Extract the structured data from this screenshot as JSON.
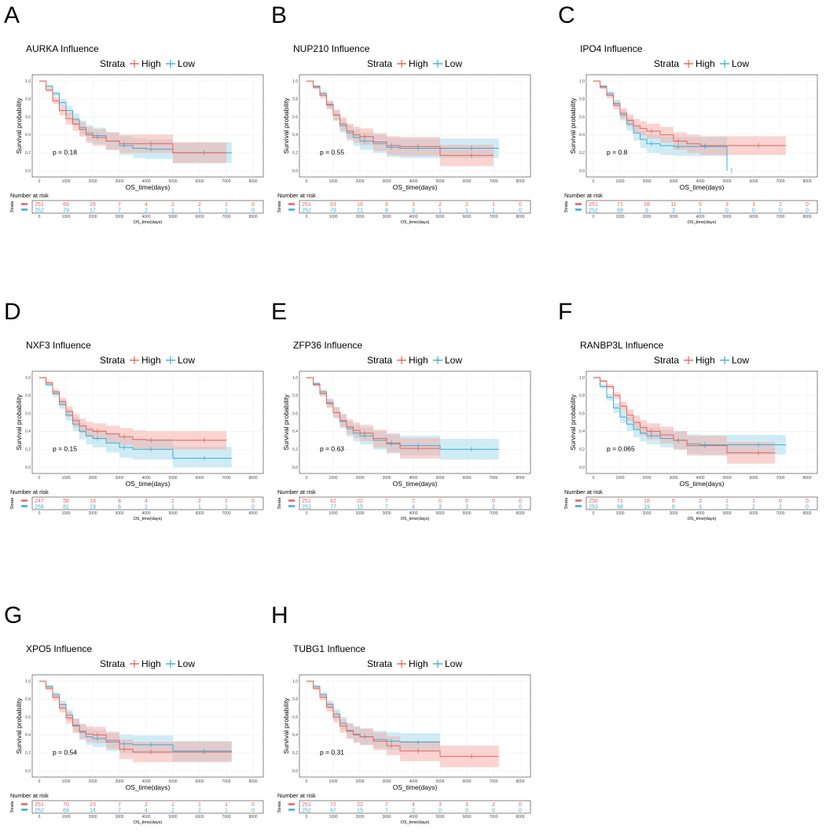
{
  "colors": {
    "high": "#e8615a",
    "low": "#38aed2",
    "high_band": "#f5a9a4",
    "low_band": "#a7dcec",
    "grid": "#ebebeb"
  },
  "panels_common": {
    "legend_title": "Strata",
    "legend_high": "High",
    "legend_low": "Low",
    "ylabel": "Survival probability",
    "xlabel": "OS_time(days)",
    "risk_title": "Number at risk",
    "risk_strata_label": "Strata",
    "x_ticks": [
      "0",
      "1000",
      "2000",
      "3000",
      "4000",
      "5000",
      "6000",
      "7000",
      "8000"
    ],
    "y_ticks": [
      "0.0",
      "0.2",
      "0.4",
      "0.6",
      "0.8",
      "1.0"
    ]
  },
  "chart_data": [
    {
      "letter": "A",
      "type": "line",
      "title": "AURKA Influence",
      "pvalue": "p = 0.18",
      "xlabel": "OS_time(days)",
      "ylabel": "Survival probability",
      "xlim": [
        0,
        8000
      ],
      "ylim": [
        0,
        1
      ],
      "series": [
        {
          "name": "High",
          "x": [
            0,
            250,
            500,
            750,
            1000,
            1250,
            1500,
            1750,
            2000,
            2500,
            3000,
            3500,
            4000,
            5000,
            6000,
            7000
          ],
          "y": [
            1.0,
            0.9,
            0.78,
            0.67,
            0.58,
            0.52,
            0.46,
            0.4,
            0.37,
            0.33,
            0.3,
            0.3,
            0.3,
            0.2,
            0.2,
            0.2
          ]
        },
        {
          "name": "Low",
          "x": [
            0,
            250,
            500,
            750,
            1000,
            1250,
            1500,
            1750,
            2000,
            2500,
            3000,
            3500,
            4000,
            5000,
            6000,
            7200
          ],
          "y": [
            1.0,
            0.94,
            0.86,
            0.76,
            0.67,
            0.57,
            0.48,
            0.42,
            0.39,
            0.33,
            0.28,
            0.25,
            0.24,
            0.2,
            0.2,
            0.2
          ]
        }
      ],
      "risk": {
        "High": [
          "251",
          "69",
          "20",
          "7",
          "4",
          "2",
          "2",
          "1",
          "0"
        ],
        "Low": [
          "252",
          "79",
          "17",
          "7",
          "2",
          "1",
          "1",
          "1",
          "0"
        ]
      }
    },
    {
      "letter": "B",
      "type": "line",
      "title": "NUP210 Influence",
      "pvalue": "p = 0.55",
      "xlabel": "OS_time(days)",
      "ylabel": "Survival probability",
      "xlim": [
        0,
        8000
      ],
      "ylim": [
        0,
        1
      ],
      "series": [
        {
          "name": "High",
          "x": [
            0,
            250,
            500,
            750,
            1000,
            1250,
            1500,
            1750,
            2000,
            2500,
            3000,
            3500,
            4000,
            5000,
            6000,
            7000
          ],
          "y": [
            1.0,
            0.93,
            0.84,
            0.73,
            0.62,
            0.52,
            0.44,
            0.4,
            0.38,
            0.32,
            0.28,
            0.27,
            0.27,
            0.17,
            0.17,
            0.17
          ]
        },
        {
          "name": "Low",
          "x": [
            0,
            250,
            500,
            750,
            1000,
            1250,
            1500,
            1750,
            2000,
            2500,
            3000,
            3500,
            4000,
            5000,
            6000,
            7200
          ],
          "y": [
            1.0,
            0.94,
            0.86,
            0.74,
            0.62,
            0.5,
            0.42,
            0.37,
            0.33,
            0.3,
            0.26,
            0.25,
            0.25,
            0.25,
            0.25,
            0.25
          ]
        }
      ],
      "risk": {
        "High": [
          "251",
          "63",
          "16",
          "6",
          "3",
          "2",
          "2",
          "1",
          "0"
        ],
        "Low": [
          "252",
          "78",
          "21",
          "8",
          "3",
          "1",
          "1",
          "1",
          "0"
        ]
      }
    },
    {
      "letter": "C",
      "type": "line",
      "title": "IPO4 Influence",
      "pvalue": "p = 0.8",
      "xlabel": "OS_time(days)",
      "ylabel": "Survival probability",
      "xlim": [
        0,
        8000
      ],
      "ylim": [
        0,
        1
      ],
      "series": [
        {
          "name": "High",
          "x": [
            0,
            250,
            500,
            750,
            1000,
            1250,
            1500,
            1750,
            2000,
            2500,
            3000,
            3500,
            4000,
            5000,
            6000,
            7200
          ],
          "y": [
            1.0,
            0.93,
            0.84,
            0.73,
            0.64,
            0.56,
            0.5,
            0.47,
            0.44,
            0.4,
            0.33,
            0.3,
            0.28,
            0.28,
            0.28,
            0.28
          ]
        },
        {
          "name": "Low",
          "x": [
            0,
            250,
            500,
            750,
            1000,
            1250,
            1500,
            1750,
            2000,
            2500,
            3000,
            3500,
            4000,
            4950,
            5000
          ],
          "y": [
            1.0,
            0.94,
            0.86,
            0.75,
            0.62,
            0.52,
            0.42,
            0.35,
            0.3,
            0.28,
            0.27,
            0.27,
            0.27,
            0.27,
            0.0
          ]
        }
      ],
      "risk": {
        "High": [
          "251",
          "71",
          "28",
          "11",
          "5",
          "3",
          "3",
          "2",
          "0"
        ],
        "Low": [
          "252",
          "69",
          "9",
          "3",
          "1",
          "0",
          "0",
          "0",
          "0"
        ]
      }
    },
    {
      "letter": "D",
      "type": "line",
      "title": "NXF3 Influence",
      "pvalue": "p = 0.15",
      "xlabel": "OS_time(days)",
      "ylabel": "Survival probability",
      "xlim": [
        0,
        8000
      ],
      "ylim": [
        0,
        1
      ],
      "series": [
        {
          "name": "High",
          "x": [
            0,
            250,
            500,
            750,
            1000,
            1250,
            1500,
            1750,
            2000,
            2500,
            3000,
            3500,
            4000,
            5000,
            6000,
            7000
          ],
          "y": [
            1.0,
            0.94,
            0.84,
            0.73,
            0.62,
            0.52,
            0.46,
            0.42,
            0.4,
            0.37,
            0.34,
            0.31,
            0.3,
            0.3,
            0.3,
            0.3
          ]
        },
        {
          "name": "Low",
          "x": [
            0,
            250,
            500,
            750,
            1000,
            1250,
            1500,
            1750,
            2000,
            2500,
            3000,
            3500,
            4000,
            5000,
            6000,
            7200
          ],
          "y": [
            1.0,
            0.92,
            0.82,
            0.7,
            0.58,
            0.48,
            0.4,
            0.35,
            0.32,
            0.27,
            0.22,
            0.2,
            0.2,
            0.1,
            0.1,
            0.1
          ]
        }
      ],
      "risk": {
        "High": [
          "247",
          "58",
          "18",
          "8",
          "4",
          "2",
          "2",
          "1",
          "0"
        ],
        "Low": [
          "256",
          "81",
          "19",
          "6",
          "2",
          "1",
          "1",
          "1",
          "0"
        ]
      }
    },
    {
      "letter": "E",
      "type": "line",
      "title": "ZFP36 Influence",
      "pvalue": "p = 0.63",
      "xlabel": "OS_time(days)",
      "ylabel": "Survival probability",
      "xlim": [
        0,
        8000
      ],
      "ylim": [
        0,
        1
      ],
      "series": [
        {
          "name": "High",
          "x": [
            0,
            250,
            500,
            750,
            1000,
            1250,
            1500,
            1750,
            2000,
            2500,
            3000,
            3500,
            4000,
            5000
          ],
          "y": [
            1.0,
            0.92,
            0.82,
            0.71,
            0.61,
            0.52,
            0.45,
            0.41,
            0.38,
            0.32,
            0.27,
            0.21,
            0.21,
            0.21
          ]
        },
        {
          "name": "Low",
          "x": [
            0,
            250,
            500,
            750,
            1000,
            1250,
            1500,
            1750,
            2000,
            2500,
            3000,
            3500,
            4000,
            5000,
            6000,
            7200
          ],
          "y": [
            1.0,
            0.93,
            0.84,
            0.72,
            0.61,
            0.51,
            0.43,
            0.38,
            0.35,
            0.3,
            0.26,
            0.24,
            0.24,
            0.2,
            0.2,
            0.2
          ]
        }
      ],
      "risk": {
        "High": [
          "251",
          "62",
          "22",
          "7",
          "2",
          "0",
          "0",
          "0",
          "0"
        ],
        "Low": [
          "252",
          "77",
          "15",
          "7",
          "4",
          "3",
          "3",
          "2",
          "0"
        ]
      }
    },
    {
      "letter": "F",
      "type": "line",
      "title": "RANBP3L Influence",
      "pvalue": "p = 0.065",
      "xlabel": "OS_time(days)",
      "ylabel": "Survival probability",
      "xlim": [
        0,
        8000
      ],
      "ylim": [
        0,
        1
      ],
      "series": [
        {
          "name": "High",
          "x": [
            0,
            250,
            500,
            750,
            1000,
            1250,
            1500,
            1750,
            2000,
            2500,
            3000,
            3500,
            4000,
            5000,
            6000,
            6800
          ],
          "y": [
            1.0,
            0.96,
            0.9,
            0.8,
            0.68,
            0.58,
            0.5,
            0.44,
            0.4,
            0.36,
            0.3,
            0.24,
            0.24,
            0.16,
            0.16,
            0.16
          ]
        },
        {
          "name": "Low",
          "x": [
            0,
            250,
            500,
            750,
            1000,
            1250,
            1500,
            1750,
            2000,
            2500,
            3000,
            3500,
            4000,
            5000,
            6000,
            7200
          ],
          "y": [
            1.0,
            0.9,
            0.78,
            0.66,
            0.56,
            0.48,
            0.42,
            0.38,
            0.35,
            0.32,
            0.3,
            0.26,
            0.25,
            0.25,
            0.25,
            0.25
          ]
        }
      ],
      "risk": {
        "High": [
          "250",
          "71",
          "18",
          "6",
          "3",
          "1",
          "1",
          "0",
          "0"
        ],
        "Low": [
          "253",
          "68",
          "19",
          "8",
          "3",
          "2",
          "2",
          "2",
          "0"
        ]
      }
    },
    {
      "letter": "G",
      "type": "line",
      "title": "XPO5 Influence",
      "pvalue": "p = 0.54",
      "xlabel": "OS_time(days)",
      "ylabel": "Survival probability",
      "xlim": [
        0,
        8000
      ],
      "ylim": [
        0,
        1
      ],
      "series": [
        {
          "name": "High",
          "x": [
            0,
            250,
            500,
            750,
            1000,
            1250,
            1500,
            1750,
            2000,
            2500,
            3000,
            3500,
            4000,
            5000,
            6000,
            7200
          ],
          "y": [
            1.0,
            0.92,
            0.82,
            0.7,
            0.59,
            0.5,
            0.44,
            0.41,
            0.4,
            0.34,
            0.24,
            0.21,
            0.21,
            0.21,
            0.21,
            0.21
          ]
        },
        {
          "name": "Low",
          "x": [
            0,
            250,
            500,
            750,
            1000,
            1250,
            1500,
            1750,
            2000,
            2500,
            3000,
            3500,
            4000,
            5000,
            6000,
            7200
          ],
          "y": [
            1.0,
            0.94,
            0.85,
            0.74,
            0.62,
            0.51,
            0.43,
            0.38,
            0.36,
            0.32,
            0.3,
            0.29,
            0.29,
            0.22,
            0.22,
            0.22
          ]
        }
      ],
      "risk": {
        "High": [
          "251",
          "70",
          "23",
          "7",
          "2",
          "1",
          "1",
          "1",
          "0"
        ],
        "Low": [
          "252",
          "69",
          "14",
          "7",
          "4",
          "2",
          "2",
          "1",
          "0"
        ]
      }
    },
    {
      "letter": "H",
      "type": "line",
      "title": "TUBG1 Influence",
      "pvalue": "p = 0.31",
      "xlabel": "OS_time(days)",
      "ylabel": "Survival probability",
      "xlim": [
        0,
        8000
      ],
      "ylim": [
        0,
        1
      ],
      "series": [
        {
          "name": "High",
          "x": [
            0,
            250,
            500,
            750,
            1000,
            1250,
            1500,
            1750,
            2000,
            2500,
            3000,
            3500,
            4000,
            5000,
            6000,
            7200
          ],
          "y": [
            1.0,
            0.92,
            0.82,
            0.71,
            0.6,
            0.5,
            0.44,
            0.4,
            0.38,
            0.33,
            0.28,
            0.22,
            0.22,
            0.16,
            0.16,
            0.16
          ]
        },
        {
          "name": "Low",
          "x": [
            0,
            250,
            500,
            750,
            1000,
            1250,
            1500,
            1750,
            2000,
            2500,
            3000,
            3500,
            4000,
            5000
          ],
          "y": [
            1.0,
            0.94,
            0.85,
            0.74,
            0.63,
            0.53,
            0.45,
            0.41,
            0.38,
            0.35,
            0.33,
            0.32,
            0.32,
            0.32
          ]
        }
      ],
      "risk": {
        "High": [
          "251",
          "72",
          "22",
          "7",
          "4",
          "3",
          "3",
          "2",
          "0"
        ],
        "Low": [
          "252",
          "67",
          "15",
          "7",
          "2",
          "0",
          "0",
          "0",
          "0"
        ]
      }
    }
  ]
}
